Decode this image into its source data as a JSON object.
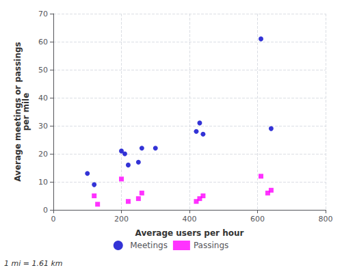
{
  "chart_data": {
    "type": "scatter",
    "xlabel": "Average users per hour",
    "ylabel": "Average meetings or passings\nper mile",
    "annotations": [
      "1 mi = 1.61 km"
    ],
    "series": [
      {
        "name": "Meetings",
        "color": "#0000cc",
        "marker": "circle",
        "x": [
          100,
          120,
          200,
          210,
          220,
          250,
          260,
          300,
          420,
          430,
          440,
          610,
          640
        ],
        "values": [
          13,
          9,
          21,
          20,
          16,
          17,
          22,
          22,
          28,
          31,
          27,
          61,
          29
        ]
      },
      {
        "name": "Passings",
        "color": "#ff00ff",
        "marker": "square",
        "x": [
          120,
          130,
          200,
          220,
          250,
          260,
          420,
          430,
          440,
          610,
          630,
          640
        ],
        "values": [
          5,
          2,
          11,
          3,
          4,
          6,
          3,
          4,
          5,
          12,
          6,
          7
        ]
      }
    ],
    "xlim": [
      0,
      800
    ],
    "xticks": [
      0,
      200,
      400,
      600,
      800
    ],
    "ylim": [
      0,
      70
    ],
    "yticks": [
      0,
      10,
      20,
      30,
      40,
      50,
      60,
      70
    ],
    "grid": true,
    "legend": "bottom"
  }
}
